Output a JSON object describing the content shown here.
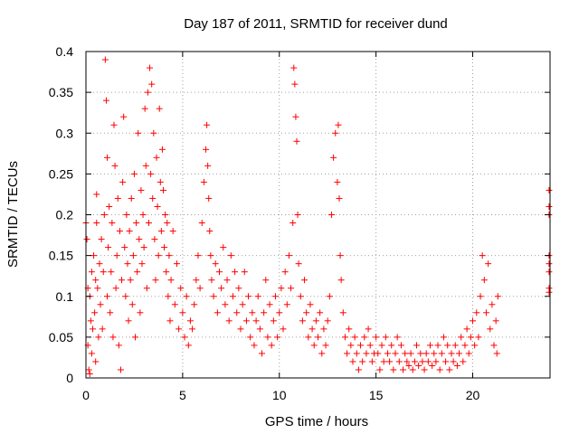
{
  "chart_data": {
    "type": "scatter",
    "title": "Day 187 of 2011, SRMTID for receiver dund",
    "xlabel": "GPS time / hours",
    "ylabel": "SRMTID / TECUs",
    "xlim": [
      0,
      24
    ],
    "ylim": [
      0,
      0.4
    ],
    "x_ticks": [
      0,
      5,
      10,
      15,
      20
    ],
    "y_ticks": [
      0,
      0.05,
      0.1,
      0.15,
      0.2,
      0.25,
      0.3,
      0.35,
      0.4
    ],
    "x_tick_labels": [
      "0",
      "5",
      "10",
      "15",
      "20"
    ],
    "y_tick_labels": [
      "0",
      "0.05",
      "0.1",
      "0.15",
      "0.2",
      "0.25",
      "0.3",
      "0.35",
      "0.4"
    ],
    "grid": true,
    "marker": "+",
    "color": "#ff0000",
    "series": [
      {
        "name": "SRMTID",
        "points": [
          [
            0.0,
            0.19
          ],
          [
            0.05,
            0.17
          ],
          [
            0.1,
            0.11
          ],
          [
            0.1,
            0.04
          ],
          [
            0.15,
            0.01
          ],
          [
            0.2,
            0.005
          ],
          [
            0.2,
            0.1
          ],
          [
            0.25,
            0.07
          ],
          [
            0.3,
            0.03
          ],
          [
            0.3,
            0.13
          ],
          [
            0.35,
            0.06
          ],
          [
            0.4,
            0.15
          ],
          [
            0.45,
            0.08
          ],
          [
            0.5,
            0.02
          ],
          [
            0.5,
            0.12
          ],
          [
            0.55,
            0.19
          ],
          [
            0.55,
            0.225
          ],
          [
            0.6,
            0.11
          ],
          [
            0.65,
            0.05
          ],
          [
            0.7,
            0.14
          ],
          [
            0.75,
            0.09
          ],
          [
            0.8,
            0.17
          ],
          [
            0.85,
            0.06
          ],
          [
            0.9,
            0.13
          ],
          [
            0.95,
            0.2
          ],
          [
            1.0,
            0.39
          ],
          [
            1.05,
            0.34
          ],
          [
            1.1,
            0.27
          ],
          [
            1.1,
            0.1
          ],
          [
            1.15,
            0.16
          ],
          [
            1.2,
            0.21
          ],
          [
            1.25,
            0.08
          ],
          [
            1.3,
            0.13
          ],
          [
            1.35,
            0.19
          ],
          [
            1.4,
            0.05
          ],
          [
            1.45,
            0.31
          ],
          [
            1.5,
            0.26
          ],
          [
            1.55,
            0.11
          ],
          [
            1.6,
            0.15
          ],
          [
            1.65,
            0.22
          ],
          [
            1.7,
            0.04
          ],
          [
            1.75,
            0.18
          ],
          [
            1.8,
            0.01
          ],
          [
            1.85,
            0.12
          ],
          [
            1.9,
            0.24
          ],
          [
            1.95,
            0.32
          ],
          [
            2.0,
            0.16
          ],
          [
            2.05,
            0.1
          ],
          [
            2.1,
            0.2
          ],
          [
            2.15,
            0.14
          ],
          [
            2.2,
            0.07
          ],
          [
            2.25,
            0.18
          ],
          [
            2.3,
            0.12
          ],
          [
            2.35,
            0.22
          ],
          [
            2.4,
            0.09
          ],
          [
            2.45,
            0.15
          ],
          [
            2.5,
            0.25
          ],
          [
            2.55,
            0.05
          ],
          [
            2.6,
            0.19
          ],
          [
            2.65,
            0.13
          ],
          [
            2.7,
            0.3
          ],
          [
            2.75,
            0.17
          ],
          [
            2.8,
            0.08
          ],
          [
            2.85,
            0.23
          ],
          [
            2.9,
            0.14
          ],
          [
            2.95,
            0.2
          ],
          [
            3.0,
            0.16
          ],
          [
            3.05,
            0.33
          ],
          [
            3.1,
            0.26
          ],
          [
            3.15,
            0.11
          ],
          [
            3.2,
            0.35
          ],
          [
            3.25,
            0.19
          ],
          [
            3.3,
            0.38
          ],
          [
            3.35,
            0.25
          ],
          [
            3.4,
            0.36
          ],
          [
            3.45,
            0.22
          ],
          [
            3.5,
            0.3
          ],
          [
            3.55,
            0.17
          ],
          [
            3.6,
            0.12
          ],
          [
            3.65,
            0.27
          ],
          [
            3.7,
            0.21
          ],
          [
            3.75,
            0.15
          ],
          [
            3.8,
            0.33
          ],
          [
            3.85,
            0.24
          ],
          [
            3.9,
            0.18
          ],
          [
            3.95,
            0.28
          ],
          [
            4.0,
            0.23
          ],
          [
            4.05,
            0.16
          ],
          [
            4.1,
            0.2
          ],
          [
            4.15,
            0.13
          ],
          [
            4.2,
            0.19
          ],
          [
            4.25,
            0.1
          ],
          [
            4.3,
            0.15
          ],
          [
            4.35,
            0.07
          ],
          [
            4.4,
            0.12
          ],
          [
            4.5,
            0.18
          ],
          [
            4.6,
            0.09
          ],
          [
            4.7,
            0.14
          ],
          [
            4.8,
            0.06
          ],
          [
            4.9,
            0.11
          ],
          [
            5.0,
            0.08
          ],
          [
            5.1,
            0.05
          ],
          [
            5.2,
            0.1
          ],
          [
            5.3,
            0.04
          ],
          [
            5.4,
            0.07
          ],
          [
            5.5,
            0.06
          ],
          [
            5.6,
            0.09
          ],
          [
            5.7,
            0.12
          ],
          [
            5.8,
            0.15
          ],
          [
            5.9,
            0.11
          ],
          [
            6.0,
            0.19
          ],
          [
            6.1,
            0.24
          ],
          [
            6.2,
            0.28
          ],
          [
            6.25,
            0.31
          ],
          [
            6.3,
            0.26
          ],
          [
            6.35,
            0.22
          ],
          [
            6.4,
            0.18
          ],
          [
            6.45,
            0.15
          ],
          [
            6.5,
            0.12
          ],
          [
            6.6,
            0.1
          ],
          [
            6.7,
            0.14
          ],
          [
            6.8,
            0.08
          ],
          [
            6.9,
            0.13
          ],
          [
            7.0,
            0.11
          ],
          [
            7.1,
            0.16
          ],
          [
            7.2,
            0.09
          ],
          [
            7.3,
            0.12
          ],
          [
            7.4,
            0.07
          ],
          [
            7.5,
            0.15
          ],
          [
            7.6,
            0.1
          ],
          [
            7.7,
            0.13
          ],
          [
            7.8,
            0.08
          ],
          [
            7.9,
            0.11
          ],
          [
            8.0,
            0.06
          ],
          [
            8.1,
            0.09
          ],
          [
            8.2,
            0.13
          ],
          [
            8.3,
            0.07
          ],
          [
            8.4,
            0.1
          ],
          [
            8.5,
            0.05
          ],
          [
            8.6,
            0.08
          ],
          [
            8.7,
            0.04
          ],
          [
            8.8,
            0.07
          ],
          [
            8.9,
            0.1
          ],
          [
            9.0,
            0.06
          ],
          [
            9.1,
            0.03
          ],
          [
            9.2,
            0.08
          ],
          [
            9.3,
            0.12
          ],
          [
            9.4,
            0.05
          ],
          [
            9.5,
            0.09
          ],
          [
            9.6,
            0.04
          ],
          [
            9.7,
            0.07
          ],
          [
            9.8,
            0.1
          ],
          [
            9.9,
            0.05
          ],
          [
            10.0,
            0.08
          ],
          [
            10.1,
            0.11
          ],
          [
            10.2,
            0.06
          ],
          [
            10.3,
            0.13
          ],
          [
            10.4,
            0.09
          ],
          [
            10.5,
            0.15
          ],
          [
            10.6,
            0.11
          ],
          [
            10.7,
            0.19
          ],
          [
            10.75,
            0.38
          ],
          [
            10.8,
            0.36
          ],
          [
            10.85,
            0.32
          ],
          [
            10.9,
            0.29
          ],
          [
            10.95,
            0.2
          ],
          [
            11.0,
            0.14
          ],
          [
            11.1,
            0.1
          ],
          [
            11.2,
            0.07
          ],
          [
            11.3,
            0.12
          ],
          [
            11.4,
            0.08
          ],
          [
            11.5,
            0.05
          ],
          [
            11.6,
            0.09
          ],
          [
            11.7,
            0.06
          ],
          [
            11.8,
            0.04
          ],
          [
            11.9,
            0.07
          ],
          [
            12.0,
            0.05
          ],
          [
            12.1,
            0.08
          ],
          [
            12.2,
            0.03
          ],
          [
            12.3,
            0.06
          ],
          [
            12.4,
            0.04
          ],
          [
            12.5,
            0.07
          ],
          [
            12.6,
            0.1
          ],
          [
            12.7,
            0.2
          ],
          [
            12.8,
            0.27
          ],
          [
            12.9,
            0.3
          ],
          [
            13.0,
            0.24
          ],
          [
            13.05,
            0.31
          ],
          [
            13.1,
            0.22
          ],
          [
            13.15,
            0.15
          ],
          [
            13.2,
            0.12
          ],
          [
            13.3,
            0.08
          ],
          [
            13.4,
            0.05
          ],
          [
            13.5,
            0.03
          ],
          [
            13.6,
            0.06
          ],
          [
            13.7,
            0.04
          ],
          [
            13.8,
            0.02
          ],
          [
            13.9,
            0.05
          ],
          [
            14.0,
            0.03
          ],
          [
            14.1,
            0.01
          ],
          [
            14.2,
            0.04
          ],
          [
            14.3,
            0.02
          ],
          [
            14.4,
            0.05
          ],
          [
            14.5,
            0.03
          ],
          [
            14.6,
            0.06
          ],
          [
            14.7,
            0.04
          ],
          [
            14.8,
            0.02
          ],
          [
            14.9,
            0.03
          ],
          [
            15.0,
            0.05
          ],
          [
            15.1,
            0.03
          ],
          [
            15.2,
            0.01
          ],
          [
            15.3,
            0.04
          ],
          [
            15.4,
            0.02
          ],
          [
            15.5,
            0.05
          ],
          [
            15.6,
            0.03
          ],
          [
            15.7,
            0.02
          ],
          [
            15.8,
            0.04
          ],
          [
            15.9,
            0.01
          ],
          [
            16.0,
            0.03
          ],
          [
            16.1,
            0.05
          ],
          [
            16.2,
            0.02
          ],
          [
            16.3,
            0.04
          ],
          [
            16.4,
            0.01
          ],
          [
            16.5,
            0.03
          ],
          [
            16.6,
            0.02
          ],
          [
            16.7,
            0.015
          ],
          [
            16.8,
            0.03
          ],
          [
            16.9,
            0.01
          ],
          [
            17.0,
            0.02
          ],
          [
            17.1,
            0.04
          ],
          [
            17.2,
            0.015
          ],
          [
            17.3,
            0.03
          ],
          [
            17.4,
            0.02
          ],
          [
            17.5,
            0.01
          ],
          [
            17.6,
            0.03
          ],
          [
            17.7,
            0.02
          ],
          [
            17.8,
            0.04
          ],
          [
            17.9,
            0.015
          ],
          [
            18.0,
            0.03
          ],
          [
            18.1,
            0.02
          ],
          [
            18.2,
            0.04
          ],
          [
            18.3,
            0.01
          ],
          [
            18.4,
            0.03
          ],
          [
            18.5,
            0.05
          ],
          [
            18.6,
            0.02
          ],
          [
            18.7,
            0.04
          ],
          [
            18.8,
            0.01
          ],
          [
            18.9,
            0.03
          ],
          [
            19.0,
            0.02
          ],
          [
            19.1,
            0.04
          ],
          [
            19.2,
            0.015
          ],
          [
            19.3,
            0.03
          ],
          [
            19.4,
            0.05
          ],
          [
            19.5,
            0.02
          ],
          [
            19.6,
            0.04
          ],
          [
            19.7,
            0.06
          ],
          [
            19.8,
            0.03
          ],
          [
            19.9,
            0.05
          ],
          [
            20.0,
            0.07
          ],
          [
            20.1,
            0.04
          ],
          [
            20.2,
            0.08
          ],
          [
            20.3,
            0.05
          ],
          [
            20.4,
            0.1
          ],
          [
            20.5,
            0.15
          ],
          [
            20.6,
            0.12
          ],
          [
            20.7,
            0.08
          ],
          [
            20.8,
            0.14
          ],
          [
            20.9,
            0.06
          ],
          [
            21.0,
            0.09
          ],
          [
            21.1,
            0.04
          ],
          [
            21.2,
            0.07
          ],
          [
            21.25,
            0.03
          ],
          [
            21.3,
            0.1
          ],
          [
            23.95,
            0.23
          ],
          [
            23.95,
            0.21
          ],
          [
            23.95,
            0.2
          ],
          [
            23.95,
            0.15
          ],
          [
            23.95,
            0.14
          ],
          [
            23.95,
            0.13
          ],
          [
            23.95,
            0.11
          ],
          [
            23.95,
            0.105
          ]
        ]
      }
    ]
  }
}
